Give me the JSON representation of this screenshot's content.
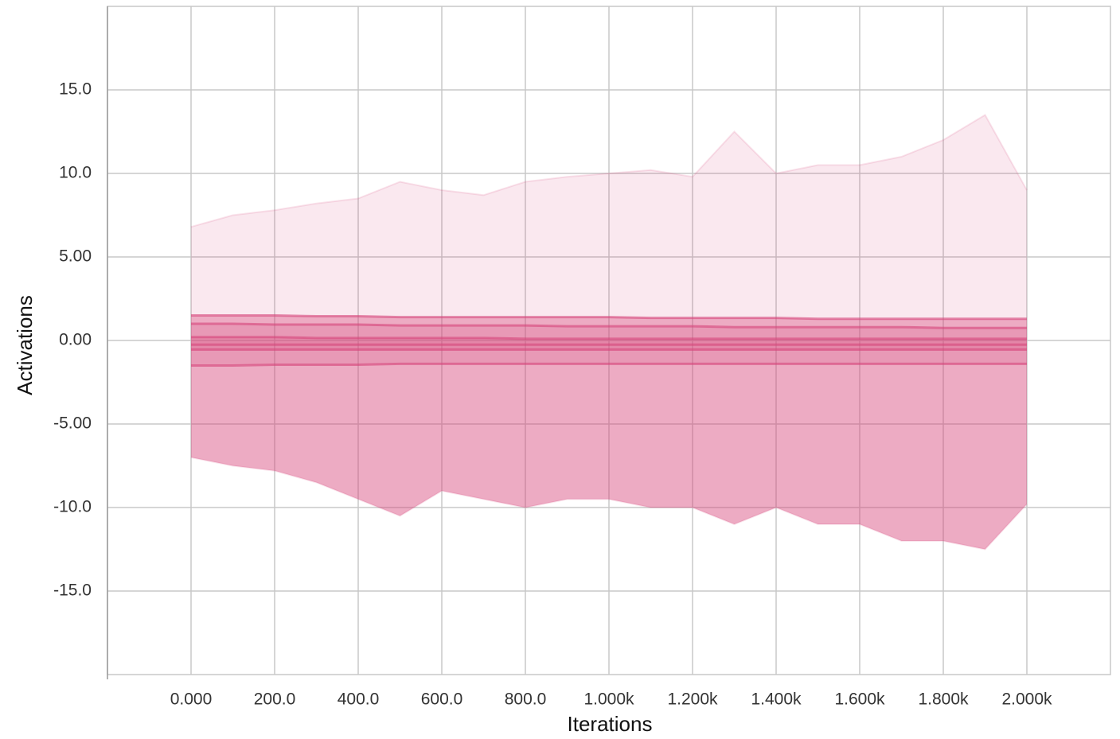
{
  "chart_data": {
    "type": "distribution",
    "x_label": "Iterations",
    "y_label": "Activations",
    "x": [
      0,
      100,
      200,
      300,
      400,
      500,
      600,
      700,
      800,
      900,
      1000,
      1100,
      1200,
      1300,
      1400,
      1500,
      1600,
      1700,
      1800,
      1900,
      2000
    ],
    "color": "#d6457a",
    "series": [
      {
        "values": [
          6.8,
          7.5,
          7.8,
          8.2,
          8.5,
          9.5,
          9.0,
          8.7,
          9.5,
          9.8,
          10.0,
          10.2,
          9.8,
          12.5,
          10.0,
          10.5,
          10.5,
          11.0,
          12.0,
          13.5,
          9.0
        ]
      },
      {
        "values": [
          1.5,
          1.5,
          1.5,
          1.45,
          1.45,
          1.4,
          1.4,
          1.4,
          1.4,
          1.4,
          1.4,
          1.35,
          1.35,
          1.35,
          1.35,
          1.3,
          1.3,
          1.3,
          1.3,
          1.3,
          1.3
        ]
      },
      {
        "values": [
          1.0,
          1.0,
          0.95,
          0.95,
          0.95,
          0.9,
          0.9,
          0.9,
          0.9,
          0.85,
          0.85,
          0.85,
          0.85,
          0.8,
          0.8,
          0.8,
          0.8,
          0.8,
          0.75,
          0.75,
          0.75
        ]
      },
      {
        "values": [
          0.2,
          0.2,
          0.2,
          0.15,
          0.15,
          0.15,
          0.15,
          0.15,
          0.1,
          0.1,
          0.1,
          0.1,
          0.1,
          0.1,
          0.1,
          0.1,
          0.1,
          0.1,
          0.1,
          0.1,
          0.1
        ]
      },
      {
        "values": [
          -0.25,
          -0.25,
          -0.25,
          -0.25,
          -0.25,
          -0.25,
          -0.25,
          -0.25,
          -0.25,
          -0.25,
          -0.25,
          -0.25,
          -0.25,
          -0.25,
          -0.25,
          -0.25,
          -0.25,
          -0.25,
          -0.25,
          -0.25,
          -0.25
        ]
      },
      {
        "values": [
          -0.55,
          -0.55,
          -0.55,
          -0.55,
          -0.55,
          -0.55,
          -0.55,
          -0.55,
          -0.55,
          -0.55,
          -0.55,
          -0.55,
          -0.55,
          -0.55,
          -0.55,
          -0.55,
          -0.55,
          -0.55,
          -0.55,
          -0.55,
          -0.55
        ]
      },
      {
        "values": [
          -1.5,
          -1.5,
          -1.45,
          -1.45,
          -1.45,
          -1.4,
          -1.4,
          -1.4,
          -1.4,
          -1.4,
          -1.4,
          -1.4,
          -1.4,
          -1.4,
          -1.4,
          -1.4,
          -1.4,
          -1.4,
          -1.4,
          -1.4,
          -1.4
        ]
      },
      {
        "values": [
          -7.0,
          -7.5,
          -7.8,
          -8.5,
          -9.5,
          -10.5,
          -9.0,
          -9.5,
          -10.0,
          -9.5,
          -9.5,
          -10.0,
          -10.0,
          -11.0,
          -10.0,
          -11.0,
          -11.0,
          -12.0,
          -12.0,
          -12.5,
          -9.8
        ]
      }
    ],
    "xlim": [
      -200,
      2200
    ],
    "xticks": [
      {
        "value": 0,
        "label": "0.000"
      },
      {
        "value": 200,
        "label": "200.0"
      },
      {
        "value": 400,
        "label": "400.0"
      },
      {
        "value": 600,
        "label": "600.0"
      },
      {
        "value": 800,
        "label": "800.0"
      },
      {
        "value": 1000,
        "label": "1.000k"
      },
      {
        "value": 1200,
        "label": "1.200k"
      },
      {
        "value": 1400,
        "label": "1.400k"
      },
      {
        "value": 1600,
        "label": "1.600k"
      },
      {
        "value": 1800,
        "label": "1.800k"
      },
      {
        "value": 2000,
        "label": "2.000k"
      }
    ],
    "ylim": [
      -20,
      20
    ],
    "yticks": [
      {
        "value": -15,
        "label": "-15.0"
      },
      {
        "value": -10,
        "label": "-10.0"
      },
      {
        "value": -5,
        "label": "-5.00"
      },
      {
        "value": 0,
        "label": "0.00"
      },
      {
        "value": 5,
        "label": "5.00"
      },
      {
        "value": 10,
        "label": "10.0"
      },
      {
        "value": 15,
        "label": "15.0"
      }
    ],
    "grid": true
  }
}
